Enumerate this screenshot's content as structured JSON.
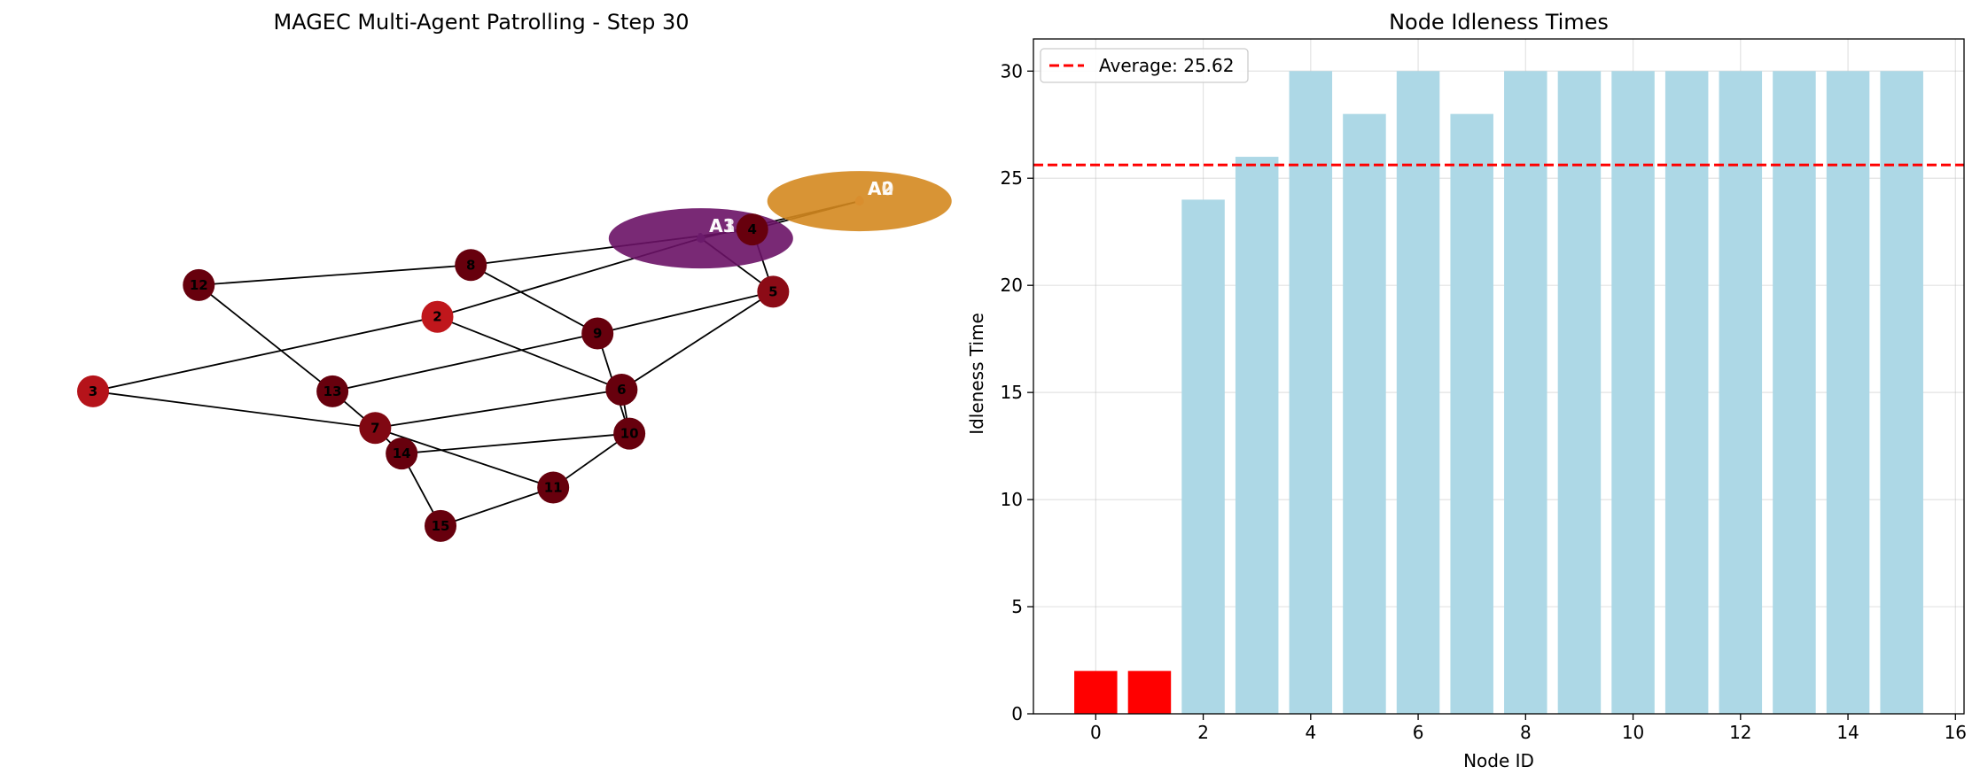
{
  "chart_data": [
    {
      "type": "network",
      "title": "MAGEC Multi-Agent Patrolling - Step 30",
      "nodes": [
        {
          "id": 0,
          "label": "0",
          "x": 0.986,
          "y": 0.812,
          "color": "#d98e2e"
        },
        {
          "id": 1,
          "label": "1",
          "x": 0.782,
          "y": 0.745,
          "color": "#6b1a6b"
        },
        {
          "id": 2,
          "label": "2",
          "x": 0.443,
          "y": 0.604,
          "color": "#c0171c"
        },
        {
          "id": 3,
          "label": "3",
          "x": 0.0,
          "y": 0.47,
          "color": "#b5131a"
        },
        {
          "id": 4,
          "label": "4",
          "x": 0.848,
          "y": 0.761,
          "color": "#67000d"
        },
        {
          "id": 5,
          "label": "5",
          "x": 0.875,
          "y": 0.649,
          "color": "#8c0b16"
        },
        {
          "id": 6,
          "label": "6",
          "x": 0.68,
          "y": 0.473,
          "color": "#67000d"
        },
        {
          "id": 7,
          "label": "7",
          "x": 0.363,
          "y": 0.404,
          "color": "#800812"
        },
        {
          "id": 8,
          "label": "8",
          "x": 0.486,
          "y": 0.697,
          "color": "#67000d"
        },
        {
          "id": 9,
          "label": "9",
          "x": 0.649,
          "y": 0.574,
          "color": "#67000d"
        },
        {
          "id": 10,
          "label": "10",
          "x": 0.69,
          "y": 0.394,
          "color": "#67000d"
        },
        {
          "id": 11,
          "label": "11",
          "x": 0.592,
          "y": 0.297,
          "color": "#67000d"
        },
        {
          "id": 12,
          "label": "12",
          "x": 0.136,
          "y": 0.661,
          "color": "#67000d"
        },
        {
          "id": 13,
          "label": "13",
          "x": 0.308,
          "y": 0.47,
          "color": "#67000d"
        },
        {
          "id": 14,
          "label": "14",
          "x": 0.397,
          "y": 0.358,
          "color": "#67000d"
        },
        {
          "id": 15,
          "label": "15",
          "x": 0.447,
          "y": 0.228,
          "color": "#67000d"
        }
      ],
      "edges": [
        [
          0,
          4
        ],
        [
          0,
          1
        ],
        [
          4,
          8
        ],
        [
          4,
          5
        ],
        [
          1,
          2
        ],
        [
          1,
          5
        ],
        [
          8,
          12
        ],
        [
          8,
          9
        ],
        [
          2,
          3
        ],
        [
          2,
          6
        ],
        [
          5,
          9
        ],
        [
          5,
          6
        ],
        [
          9,
          13
        ],
        [
          9,
          10
        ],
        [
          6,
          7
        ],
        [
          6,
          10
        ],
        [
          12,
          13
        ],
        [
          13,
          7
        ],
        [
          3,
          7
        ],
        [
          7,
          14
        ],
        [
          7,
          11
        ],
        [
          14,
          10
        ],
        [
          10,
          11
        ],
        [
          14,
          15
        ],
        [
          15,
          11
        ]
      ],
      "agents": [
        {
          "name": "A0",
          "node": 0,
          "color": "#d4881f"
        },
        {
          "name": "A2",
          "node": 0,
          "color": "#d4881f"
        },
        {
          "name": "A1",
          "node": 1,
          "color": "#6a1266"
        },
        {
          "name": "A3",
          "node": 1,
          "color": "#6a1266"
        }
      ]
    },
    {
      "type": "bar",
      "title": "Node Idleness Times",
      "xlabel": "Node ID",
      "ylabel": "Idleness Time",
      "categories": [
        0,
        1,
        2,
        3,
        4,
        5,
        6,
        7,
        8,
        9,
        10,
        11,
        12,
        13,
        14,
        15
      ],
      "values": [
        2,
        2,
        24,
        26,
        30,
        28,
        30,
        28,
        30,
        30,
        30,
        30,
        30,
        30,
        30,
        30
      ],
      "bar_colors": [
        "#ff0000",
        "#ff0000",
        "#add8e6",
        "#add8e6",
        "#add8e6",
        "#add8e6",
        "#add8e6",
        "#add8e6",
        "#add8e6",
        "#add8e6",
        "#add8e6",
        "#add8e6",
        "#add8e6",
        "#add8e6",
        "#add8e6",
        "#add8e6"
      ],
      "xlim": [
        -1.16,
        16.16
      ],
      "ylim": [
        0,
        31.5
      ],
      "xticks": [
        0,
        2,
        4,
        6,
        8,
        10,
        12,
        14,
        16
      ],
      "yticks": [
        0,
        5,
        10,
        15,
        20,
        25,
        30
      ],
      "grid": true,
      "average": {
        "value": 25.62,
        "label": "Average: 25.62",
        "color": "#ff0000"
      },
      "legend_position": "top-left"
    }
  ]
}
